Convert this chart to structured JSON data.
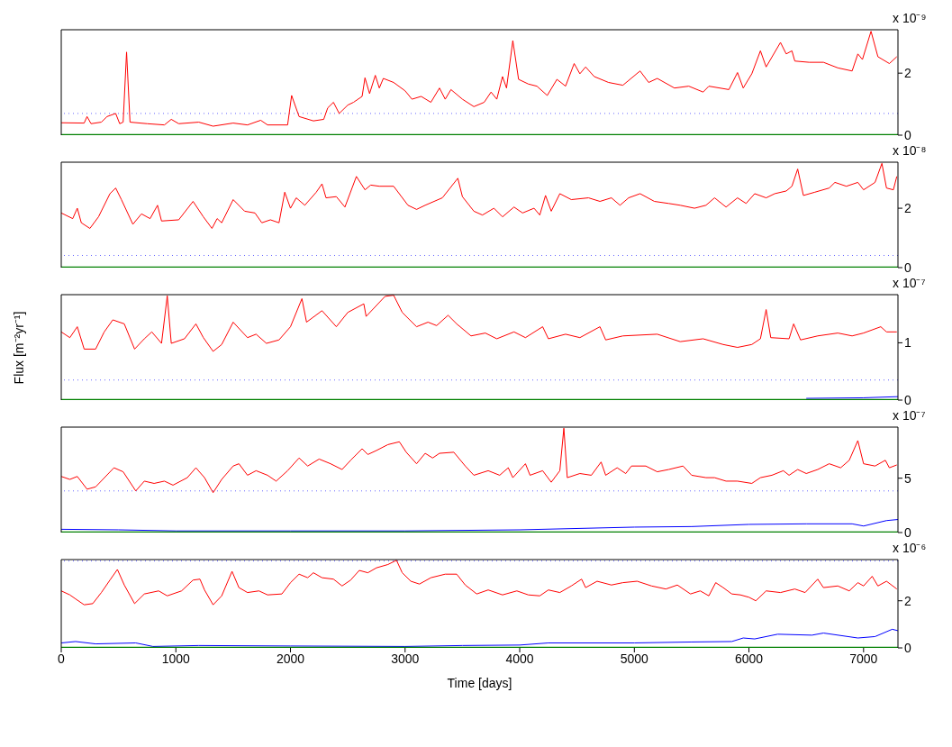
{
  "chart_data": [
    {
      "type": "line",
      "annotations": [
        "x 10⁻⁹"
      ],
      "xlim": [
        0,
        7300
      ],
      "xticks": [
        0,
        1000,
        2000,
        3000,
        4000,
        5000,
        6000,
        7000
      ],
      "ylim": [
        0,
        3.4
      ],
      "yticks": [
        0,
        2
      ],
      "tick_labels": "y",
      "marker": "none",
      "line_style": "solid",
      "ref_lines": [
        {
          "axis": "y",
          "value": 0.7,
          "color": "#6666ff",
          "line_style": "dotted"
        }
      ],
      "series": [
        {
          "color": "#ff0000",
          "x": [
            0,
            200,
            225,
            260,
            350,
            400,
            475,
            510,
            540,
            570,
            600,
            750,
            900,
            960,
            1025,
            1200,
            1325,
            1500,
            1625,
            1740,
            1800,
            1975,
            2010,
            2075,
            2200,
            2290,
            2325,
            2375,
            2425,
            2500,
            2550,
            2625,
            2650,
            2690,
            2740,
            2775,
            2810,
            2900,
            3000,
            3060,
            3140,
            3225,
            3300,
            3350,
            3400,
            3500,
            3600,
            3690,
            3750,
            3800,
            3850,
            3885,
            3940,
            3990,
            4075,
            4150,
            4240,
            4325,
            4400,
            4475,
            4525,
            4575,
            4650,
            4775,
            4900,
            5050,
            5125,
            5200,
            5350,
            5475,
            5600,
            5650,
            5825,
            5900,
            5950,
            6025,
            6100,
            6150,
            6275,
            6325,
            6375,
            6400,
            6525,
            6650,
            6775,
            6900,
            6950,
            6990,
            7065,
            7125,
            7225,
            7290
          ],
          "values": [
            0.4,
            0.39,
            0.6,
            0.37,
            0.42,
            0.6,
            0.7,
            0.37,
            0.42,
            2.68,
            0.42,
            0.37,
            0.33,
            0.51,
            0.37,
            0.42,
            0.29,
            0.39,
            0.33,
            0.48,
            0.33,
            0.33,
            1.28,
            0.6,
            0.46,
            0.51,
            0.88,
            1.06,
            0.7,
            0.97,
            1.06,
            1.25,
            1.85,
            1.34,
            1.93,
            1.52,
            1.83,
            1.7,
            1.43,
            1.16,
            1.25,
            1.06,
            1.52,
            1.16,
            1.47,
            1.16,
            0.92,
            1.06,
            1.39,
            1.16,
            1.89,
            1.52,
            3.05,
            1.8,
            1.65,
            1.58,
            1.28,
            1.8,
            1.58,
            2.31,
            1.98,
            2.2,
            1.89,
            1.7,
            1.61,
            2.07,
            1.7,
            1.83,
            1.52,
            1.58,
            1.39,
            1.58,
            1.47,
            2.02,
            1.52,
            1.98,
            2.72,
            2.2,
            2.99,
            2.62,
            2.72,
            2.39,
            2.35,
            2.35,
            2.17,
            2.07,
            2.62,
            2.44,
            3.35,
            2.53,
            2.31,
            2.53
          ]
        },
        {
          "color": "#008000",
          "x": [
            0,
            7300
          ],
          "values": [
            0,
            0
          ]
        }
      ]
    },
    {
      "type": "line",
      "annotations": [
        "x 10⁻⁸"
      ],
      "xlim": [
        0,
        7300
      ],
      "xticks": [
        0,
        1000,
        2000,
        3000,
        4000,
        5000,
        6000,
        7000
      ],
      "ylim": [
        0,
        3.55
      ],
      "yticks": [
        0,
        2
      ],
      "tick_labels": "y",
      "marker": "none",
      "line_style": "solid",
      "ref_lines": [
        {
          "axis": "y",
          "value": 0.41,
          "color": "#6666ff",
          "line_style": "dotted"
        }
      ],
      "series": [
        {
          "color": "#ff0000",
          "x": [
            0,
            100,
            140,
            175,
            250,
            325,
            425,
            475,
            525,
            625,
            700,
            775,
            840,
            875,
            1025,
            1150,
            1240,
            1315,
            1360,
            1400,
            1500,
            1600,
            1690,
            1750,
            1825,
            1900,
            1950,
            2000,
            2050,
            2125,
            2225,
            2275,
            2310,
            2400,
            2475,
            2575,
            2650,
            2700,
            2775,
            2900,
            3025,
            3100,
            3175,
            3325,
            3460,
            3500,
            3600,
            3675,
            3775,
            3850,
            3950,
            4025,
            4125,
            4175,
            4225,
            4275,
            4350,
            4450,
            4600,
            4700,
            4800,
            4875,
            4950,
            5050,
            5175,
            5300,
            5400,
            5525,
            5625,
            5700,
            5800,
            5900,
            5975,
            6050,
            6150,
            6225,
            6325,
            6375,
            6425,
            6475,
            6575,
            6700,
            6750,
            6850,
            6950,
            7000,
            7100,
            7160,
            7200,
            7260,
            7290
          ],
          "values": [
            1.84,
            1.65,
            2.0,
            1.51,
            1.32,
            1.71,
            2.49,
            2.68,
            2.29,
            1.46,
            1.81,
            1.65,
            2.1,
            1.57,
            1.61,
            2.23,
            1.71,
            1.32,
            1.65,
            1.51,
            2.29,
            1.9,
            1.84,
            1.51,
            1.61,
            1.51,
            2.54,
            2.0,
            2.35,
            2.1,
            2.54,
            2.82,
            2.35,
            2.39,
            2.04,
            3.07,
            2.62,
            2.78,
            2.74,
            2.74,
            2.1,
            1.96,
            2.1,
            2.35,
            3.01,
            2.39,
            1.9,
            1.77,
            2.0,
            1.71,
            2.04,
            1.84,
            2.0,
            1.77,
            2.43,
            1.9,
            2.49,
            2.29,
            2.35,
            2.23,
            2.35,
            2.1,
            2.35,
            2.49,
            2.23,
            2.16,
            2.1,
            2.0,
            2.1,
            2.35,
            2.04,
            2.35,
            2.16,
            2.49,
            2.35,
            2.49,
            2.58,
            2.74,
            3.32,
            2.43,
            2.54,
            2.68,
            2.87,
            2.74,
            2.87,
            2.62,
            2.87,
            3.51,
            2.68,
            2.62,
            3.07
          ]
        },
        {
          "color": "#008000",
          "x": [
            0,
            7300
          ],
          "values": [
            0,
            0
          ]
        }
      ]
    },
    {
      "type": "line",
      "ylabel": "Flux [m⁻²yr⁻¹]",
      "annotations": [
        "x 10⁻⁷"
      ],
      "xlim": [
        0,
        7300
      ],
      "xticks": [
        0,
        1000,
        2000,
        3000,
        4000,
        5000,
        6000,
        7000
      ],
      "ylim": [
        0,
        1.84
      ],
      "yticks": [
        0,
        1
      ],
      "tick_labels": "y",
      "marker": "none",
      "line_style": "solid",
      "ref_lines": [
        {
          "axis": "y",
          "value": 0.35,
          "color": "#6666ff",
          "line_style": "dotted"
        }
      ],
      "series": [
        {
          "color": "#ff0000",
          "x": [
            0,
            75,
            140,
            200,
            300,
            375,
            450,
            550,
            640,
            725,
            790,
            875,
            925,
            960,
            1075,
            1175,
            1240,
            1325,
            1400,
            1500,
            1625,
            1700,
            1790,
            1900,
            2000,
            2100,
            2140,
            2275,
            2400,
            2500,
            2640,
            2660,
            2825,
            2900,
            2975,
            3100,
            3200,
            3275,
            3375,
            3450,
            3575,
            3700,
            3800,
            3950,
            4050,
            4200,
            4250,
            4400,
            4525,
            4700,
            4750,
            4900,
            5200,
            5400,
            5600,
            5775,
            5900,
            6025,
            6100,
            6150,
            6190,
            6350,
            6390,
            6450,
            6600,
            6775,
            6900,
            7000,
            7150,
            7200,
            7290
          ],
          "values": [
            1.19,
            1.09,
            1.28,
            0.89,
            0.89,
            1.19,
            1.4,
            1.33,
            0.89,
            1.07,
            1.19,
            0.99,
            1.82,
            0.99,
            1.07,
            1.33,
            1.09,
            0.85,
            0.97,
            1.36,
            1.09,
            1.15,
            0.99,
            1.05,
            1.28,
            1.77,
            1.36,
            1.56,
            1.28,
            1.53,
            1.68,
            1.46,
            1.81,
            1.83,
            1.53,
            1.28,
            1.36,
            1.3,
            1.48,
            1.33,
            1.12,
            1.17,
            1.07,
            1.19,
            1.09,
            1.28,
            1.07,
            1.15,
            1.09,
            1.28,
            1.05,
            1.12,
            1.15,
            1.02,
            1.07,
            0.97,
            0.92,
            0.97,
            1.07,
            1.58,
            1.09,
            1.07,
            1.33,
            1.05,
            1.12,
            1.17,
            1.12,
            1.17,
            1.28,
            1.19,
            1.19
          ]
        },
        {
          "color": "#0000ff",
          "x": [
            6500,
            7000,
            7300
          ],
          "values": [
            0.03,
            0.04,
            0.06
          ]
        },
        {
          "color": "#008000",
          "x": [
            0,
            7300
          ],
          "values": [
            0,
            0
          ]
        }
      ]
    },
    {
      "type": "line",
      "annotations": [
        "x 10⁻⁷"
      ],
      "xlim": [
        0,
        7300
      ],
      "xticks": [
        0,
        1000,
        2000,
        3000,
        4000,
        5000,
        6000,
        7000
      ],
      "ylim": [
        0,
        9.7
      ],
      "yticks": [
        0,
        5
      ],
      "tick_labels": "y",
      "marker": "none",
      "line_style": "solid",
      "ref_lines": [
        {
          "axis": "y",
          "value": 3.83,
          "color": "#6666ff",
          "line_style": "dotted"
        }
      ],
      "series": [
        {
          "color": "#ff0000",
          "x": [
            0,
            75,
            140,
            225,
            300,
            460,
            540,
            650,
            725,
            810,
            900,
            975,
            1100,
            1175,
            1250,
            1325,
            1400,
            1500,
            1550,
            1625,
            1700,
            1800,
            1875,
            1975,
            2075,
            2150,
            2250,
            2350,
            2450,
            2525,
            2625,
            2675,
            2750,
            2850,
            2950,
            3010,
            3100,
            3175,
            3240,
            3300,
            3425,
            3525,
            3600,
            3725,
            3825,
            3900,
            3940,
            4050,
            4090,
            4200,
            4275,
            4350,
            4385,
            4415,
            4525,
            4625,
            4710,
            4750,
            4850,
            4925,
            4975,
            5100,
            5200,
            5300,
            5425,
            5500,
            5625,
            5700,
            5800,
            5900,
            6025,
            6100,
            6200,
            6300,
            6350,
            6425,
            6500,
            6600,
            6700,
            6800,
            6875,
            6950,
            7000,
            7100,
            7190,
            7225,
            7290
          ],
          "values": [
            5.16,
            4.89,
            5.16,
            3.99,
            4.2,
            5.96,
            5.59,
            3.83,
            4.73,
            4.52,
            4.73,
            4.36,
            5.05,
            5.96,
            5.05,
            3.67,
            4.89,
            6.12,
            6.33,
            5.27,
            5.69,
            5.27,
            4.73,
            5.69,
            6.86,
            6.12,
            6.76,
            6.33,
            5.8,
            6.65,
            7.71,
            7.18,
            7.55,
            8.09,
            8.35,
            7.39,
            6.33,
            7.29,
            6.86,
            7.29,
            7.39,
            6.12,
            5.27,
            5.69,
            5.27,
            5.96,
            5.05,
            6.33,
            5.27,
            5.69,
            4.63,
            5.69,
            9.6,
            5.05,
            5.43,
            5.27,
            6.49,
            5.27,
            5.96,
            5.43,
            6.12,
            6.12,
            5.59,
            5.8,
            6.12,
            5.27,
            5.05,
            5.05,
            4.73,
            4.73,
            4.52,
            5.05,
            5.27,
            5.69,
            5.27,
            5.8,
            5.43,
            5.8,
            6.33,
            5.96,
            6.65,
            8.46,
            6.33,
            6.12,
            6.65,
            5.96,
            6.22
          ]
        },
        {
          "color": "#0000ff",
          "x": [
            0,
            500,
            1000,
            2000,
            3000,
            4000,
            5000,
            5500,
            6000,
            6500,
            6900,
            7000,
            7200,
            7300
          ],
          "values": [
            0.3,
            0.25,
            0.15,
            0.15,
            0.15,
            0.25,
            0.5,
            0.55,
            0.75,
            0.8,
            0.8,
            0.6,
            1.1,
            1.2
          ]
        },
        {
          "color": "#008000",
          "x": [
            0,
            7300
          ],
          "values": [
            0,
            0
          ]
        }
      ]
    },
    {
      "type": "line",
      "xlabel": "Time [days]",
      "annotations": [
        "x 10⁻⁶"
      ],
      "xlim": [
        0,
        7300
      ],
      "xticks": [
        0,
        1000,
        2000,
        3000,
        4000,
        5000,
        6000,
        7000
      ],
      "ylim": [
        0,
        3.75
      ],
      "yticks": [
        0,
        2
      ],
      "marker": "none",
      "line_style": "solid",
      "ref_lines": [
        {
          "axis": "y",
          "value": 3.69,
          "color": "#6666ff",
          "line_style": "dotted"
        }
      ],
      "series": [
        {
          "color": "#ff0000",
          "x": [
            0,
            75,
            125,
            200,
            275,
            350,
            425,
            490,
            550,
            640,
            725,
            850,
            925,
            1050,
            1150,
            1210,
            1250,
            1325,
            1400,
            1490,
            1550,
            1625,
            1725,
            1800,
            1925,
            2000,
            2075,
            2150,
            2200,
            2275,
            2375,
            2450,
            2525,
            2600,
            2675,
            2750,
            2850,
            2925,
            2975,
            3050,
            3125,
            3225,
            3350,
            3450,
            3525,
            3625,
            3725,
            3850,
            3975,
            4075,
            4175,
            4250,
            4350,
            4450,
            4540,
            4575,
            4675,
            4800,
            4900,
            5025,
            5150,
            5275,
            5375,
            5490,
            5575,
            5650,
            5710,
            5775,
            5850,
            5925,
            6000,
            6060,
            6150,
            6275,
            6400,
            6490,
            6600,
            6650,
            6775,
            6875,
            6950,
            7000,
            7075,
            7125,
            7200,
            7290
          ],
          "values": [
            2.42,
            2.25,
            2.08,
            1.83,
            1.88,
            2.35,
            2.88,
            3.33,
            2.67,
            1.88,
            2.29,
            2.42,
            2.21,
            2.42,
            2.88,
            2.92,
            2.46,
            1.83,
            2.21,
            3.25,
            2.56,
            2.35,
            2.42,
            2.25,
            2.29,
            2.77,
            3.13,
            2.98,
            3.19,
            2.98,
            2.92,
            2.63,
            2.88,
            3.29,
            3.19,
            3.4,
            3.54,
            3.72,
            3.19,
            2.83,
            2.71,
            2.98,
            3.13,
            3.13,
            2.67,
            2.29,
            2.46,
            2.25,
            2.42,
            2.25,
            2.21,
            2.46,
            2.35,
            2.63,
            2.92,
            2.56,
            2.83,
            2.67,
            2.77,
            2.83,
            2.63,
            2.5,
            2.67,
            2.29,
            2.42,
            2.21,
            2.77,
            2.56,
            2.29,
            2.25,
            2.15,
            2.0,
            2.42,
            2.35,
            2.5,
            2.35,
            2.92,
            2.56,
            2.63,
            2.42,
            2.77,
            2.63,
            3.04,
            2.63,
            2.83,
            2.5
          ]
        },
        {
          "color": "#0000ff",
          "x": [
            0,
            125,
            300,
            650,
            800,
            1200,
            2000,
            3000,
            3500,
            4000,
            4250,
            5000,
            5500,
            5850,
            5950,
            6050,
            6250,
            6550,
            6650,
            6950,
            7100,
            7250,
            7300
          ],
          "values": [
            0.21,
            0.27,
            0.17,
            0.21,
            0.06,
            0.1,
            0.08,
            0.06,
            0.1,
            0.12,
            0.21,
            0.21,
            0.25,
            0.27,
            0.42,
            0.38,
            0.58,
            0.54,
            0.63,
            0.42,
            0.48,
            0.79,
            0.73
          ]
        },
        {
          "color": "#008000",
          "x": [
            0,
            7300
          ],
          "values": [
            0,
            0
          ]
        }
      ]
    }
  ]
}
